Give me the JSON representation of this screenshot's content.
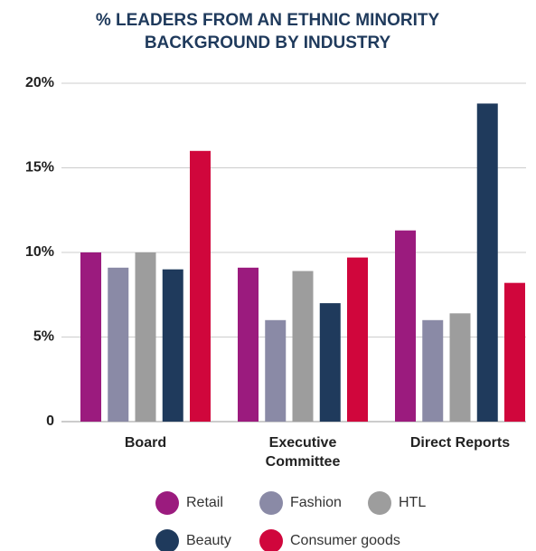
{
  "chart_data": {
    "type": "bar",
    "title": "% LEADERS FROM AN ETHNIC MINORITY BACKGROUND BY INDUSTRY",
    "categories": [
      "Board",
      "Executive Committee",
      "Direct Reports"
    ],
    "series": [
      {
        "name": "Retail",
        "color": "#9b1b7e",
        "values": [
          10,
          9.1,
          11.3
        ]
      },
      {
        "name": "Fashion",
        "color": "#8a8aa6",
        "values": [
          9.1,
          6,
          6
        ]
      },
      {
        "name": "HTL",
        "color": "#9d9d9d",
        "values": [
          10,
          8.9,
          6.4
        ]
      },
      {
        "name": "Beauty",
        "color": "#1f3a5c",
        "values": [
          9,
          7,
          18.8
        ]
      },
      {
        "name": "Consumer goods",
        "color": "#d0063c",
        "values": [
          16,
          9.7,
          8.2
        ]
      }
    ],
    "ylim": [
      0,
      20
    ],
    "yticks": [
      0,
      {
        "value": 5,
        "label": "5%"
      },
      {
        "value": 10,
        "label": "10%"
      },
      {
        "value": 15,
        "label": "15%"
      },
      {
        "value": 20,
        "label": "20%"
      }
    ],
    "grid": true
  }
}
